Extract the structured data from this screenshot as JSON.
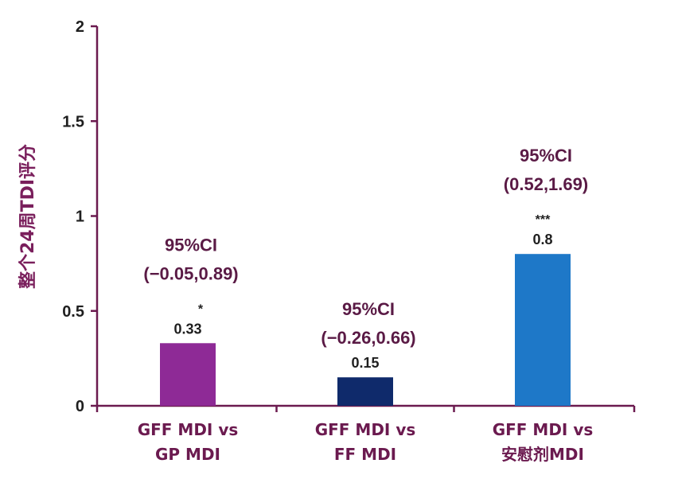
{
  "chart_data": {
    "type": "bar",
    "ylabel": "整个24周TDI评分",
    "xlabel": "",
    "ylim": [
      0,
      2
    ],
    "yticks": [
      {
        "value": 0,
        "label": "0"
      },
      {
        "value": 0.5,
        "label": "0.5"
      },
      {
        "value": 1,
        "label": "1"
      },
      {
        "value": 1.5,
        "label": "1.5"
      },
      {
        "value": 2,
        "label": "2"
      }
    ],
    "categories": [
      {
        "line1": "GFF MDI vs",
        "line2": "GP MDI"
      },
      {
        "line1": "GFF MDI vs",
        "line2": "FF MDI"
      },
      {
        "line1": "GFF MDI vs",
        "line2": "安慰剂MDI"
      }
    ],
    "values": [
      0.33,
      0.15,
      0.8
    ],
    "value_labels": [
      "0.33",
      "0.15",
      "0.8"
    ],
    "significance": [
      "*",
      "",
      "***"
    ],
    "ci": [
      {
        "line1": "95%CI",
        "line2": "(−0.05,0.89)"
      },
      {
        "line1": "95%CI",
        "line2": "(−0.26,0.66)"
      },
      {
        "line1": "95%CI",
        "line2": "(0.52,1.69)"
      }
    ],
    "colors": [
      "#8e2a96",
      "#0f2a6b",
      "#1e78c8"
    ],
    "axis_color": "#6b1a4f",
    "grid": false
  }
}
